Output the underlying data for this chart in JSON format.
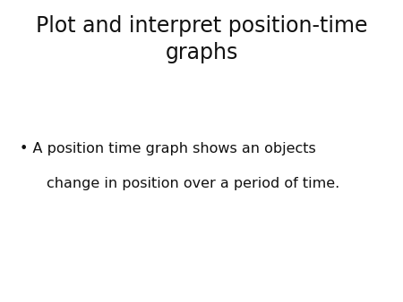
{
  "title_line1": "Plot and interpret position-time",
  "title_line2": "graphs",
  "bullet_line1": "A position time graph shows an objects",
  "bullet_line2": "change in position over a period of time.",
  "background_color": "#ffffff",
  "text_color": "#111111",
  "title_fontsize": 17,
  "body_fontsize": 11.5,
  "bullet_char": "•"
}
